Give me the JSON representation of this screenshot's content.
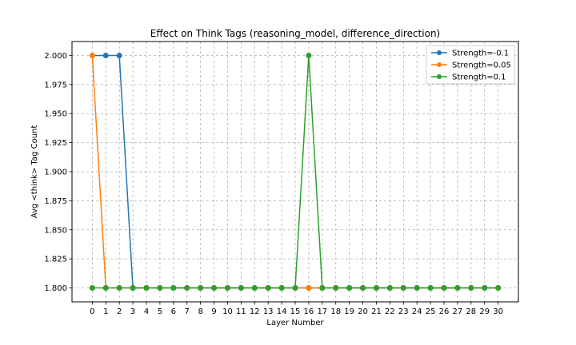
{
  "chart_data": {
    "type": "line",
    "title": "Effect on Think Tags (reasoning_model, difference_direction)",
    "xlabel": "Layer Number",
    "ylabel": "Avg <think> Tag Count",
    "x": [
      0,
      1,
      2,
      3,
      4,
      5,
      6,
      7,
      8,
      9,
      10,
      11,
      12,
      13,
      14,
      15,
      16,
      17,
      18,
      19,
      20,
      21,
      22,
      23,
      24,
      25,
      26,
      27,
      28,
      29,
      30
    ],
    "xticks": [
      "0",
      "1",
      "2",
      "3",
      "4",
      "5",
      "6",
      "7",
      "8",
      "9",
      "10",
      "11",
      "12",
      "13",
      "14",
      "15",
      "16",
      "17",
      "18",
      "19",
      "20",
      "21",
      "22",
      "23",
      "24",
      "25",
      "26",
      "27",
      "28",
      "29",
      "30"
    ],
    "ylim": [
      1.788,
      2.012
    ],
    "yticks": [
      1.8,
      1.825,
      1.85,
      1.875,
      1.9,
      1.925,
      1.95,
      1.975,
      2.0
    ],
    "ytick_labels": [
      "1.800",
      "1.825",
      "1.850",
      "1.875",
      "1.900",
      "1.925",
      "1.950",
      "1.975",
      "2.000"
    ],
    "grid": true,
    "legend_position": "upper right",
    "series": [
      {
        "name": "Strength=-0.1",
        "color": "#1f77b4",
        "values": [
          2.0,
          2.0,
          2.0,
          1.8,
          1.8,
          1.8,
          1.8,
          1.8,
          1.8,
          1.8,
          1.8,
          1.8,
          1.8,
          1.8,
          1.8,
          1.8,
          1.8,
          1.8,
          1.8,
          1.8,
          1.8,
          1.8,
          1.8,
          1.8,
          1.8,
          1.8,
          1.8,
          1.8,
          1.8,
          1.8,
          1.8
        ]
      },
      {
        "name": "Strength=0.05",
        "color": "#ff7f0e",
        "values": [
          2.0,
          1.8,
          1.8,
          1.8,
          1.8,
          1.8,
          1.8,
          1.8,
          1.8,
          1.8,
          1.8,
          1.8,
          1.8,
          1.8,
          1.8,
          1.8,
          1.8,
          1.8,
          1.8,
          1.8,
          1.8,
          1.8,
          1.8,
          1.8,
          1.8,
          1.8,
          1.8,
          1.8,
          1.8,
          1.8,
          1.8
        ]
      },
      {
        "name": "Strength=0.1",
        "color": "#2ca02c",
        "values": [
          1.8,
          1.8,
          1.8,
          1.8,
          1.8,
          1.8,
          1.8,
          1.8,
          1.8,
          1.8,
          1.8,
          1.8,
          1.8,
          1.8,
          1.8,
          1.8,
          2.0,
          1.8,
          1.8,
          1.8,
          1.8,
          1.8,
          1.8,
          1.8,
          1.8,
          1.8,
          1.8,
          1.8,
          1.8,
          1.8,
          1.8
        ]
      }
    ]
  }
}
